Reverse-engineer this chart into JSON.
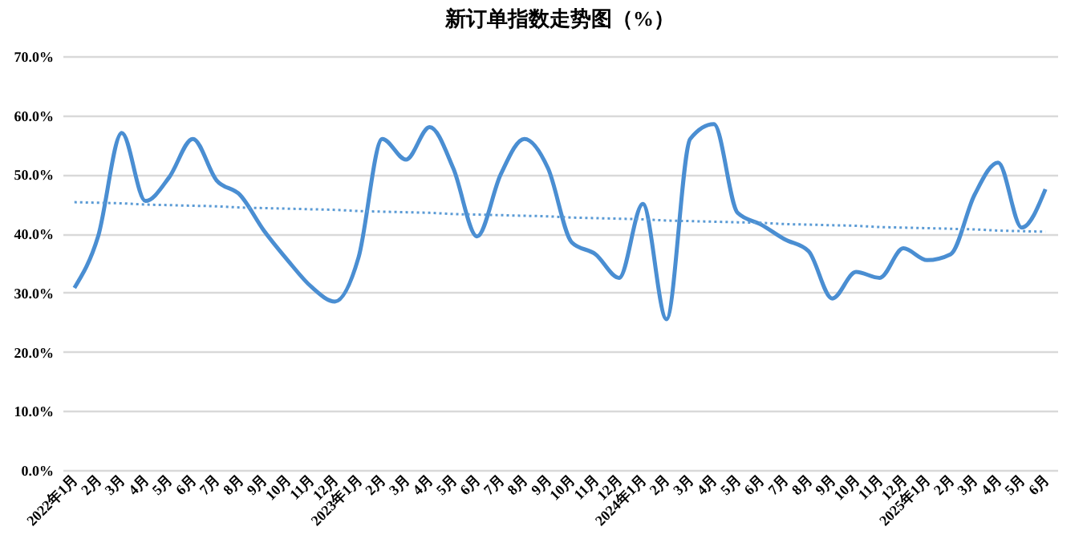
{
  "chart_data": {
    "type": "line",
    "title": "新订单指数走势图（%）",
    "categories": [
      "2022年1月",
      "2月",
      "3月",
      "4月",
      "5月",
      "6月",
      "7月",
      "8月",
      "9月",
      "10月",
      "11月",
      "12月",
      "2023年1月",
      "2月",
      "3月",
      "4月",
      "5月",
      "6月",
      "7月",
      "8月",
      "9月",
      "10月",
      "11月",
      "12月",
      "2024年1月",
      "2月",
      "3月",
      "4月",
      "5月",
      "6月",
      "7月",
      "8月",
      "9月",
      "10月",
      "11月",
      "12月",
      "2025年1月",
      "2月",
      "3月",
      "4月",
      "5月",
      "6月"
    ],
    "series": [
      {
        "color": "#4a8ed2",
        "line_style": "solid",
        "values": [
          30.8,
          39.5,
          57,
          45.5,
          49.5,
          56,
          49,
          46.5,
          40.5,
          35.5,
          31,
          28.5,
          36,
          56,
          52.5,
          58,
          51,
          39.5,
          50,
          56,
          51,
          38.5,
          36.5,
          32.5,
          45,
          25.5,
          56,
          58.5,
          43.5,
          41.5,
          39,
          37,
          29,
          33.5,
          32.5,
          37.5,
          35.5,
          36.5,
          46.5,
          52,
          41,
          47.5
        ]
      },
      {
        "type": "line",
        "color": "#5b9bd5",
        "line_style": "dotted",
        "values": [
          45.3,
          45.2,
          45.1,
          44.9,
          44.8,
          44.7,
          44.6,
          44.4,
          44.3,
          44.2,
          44.1,
          44,
          43.8,
          43.7,
          43.6,
          43.5,
          43.3,
          43.2,
          43.1,
          43,
          42.9,
          42.7,
          42.6,
          42.5,
          42.4,
          42.2,
          42.1,
          42,
          41.9,
          41.8,
          41.6,
          41.5,
          41.4,
          41.3,
          41.1,
          41,
          40.9,
          40.8,
          40.7,
          40.5,
          40.4,
          40.3
        ]
      }
    ],
    "ylim": [
      0,
      70
    ],
    "yticks": [
      {
        "value": 0,
        "label": "0.0%"
      },
      {
        "value": 10,
        "label": "10.0%"
      },
      {
        "value": 20,
        "label": "20.0%"
      },
      {
        "value": 30,
        "label": "30.0%"
      },
      {
        "value": 40,
        "label": "40.0%"
      },
      {
        "value": 50,
        "label": "50.0%"
      },
      {
        "value": 60,
        "label": "60.0%"
      },
      {
        "value": 70,
        "label": "70.0%"
      }
    ],
    "grid": "y",
    "marker": "none"
  }
}
